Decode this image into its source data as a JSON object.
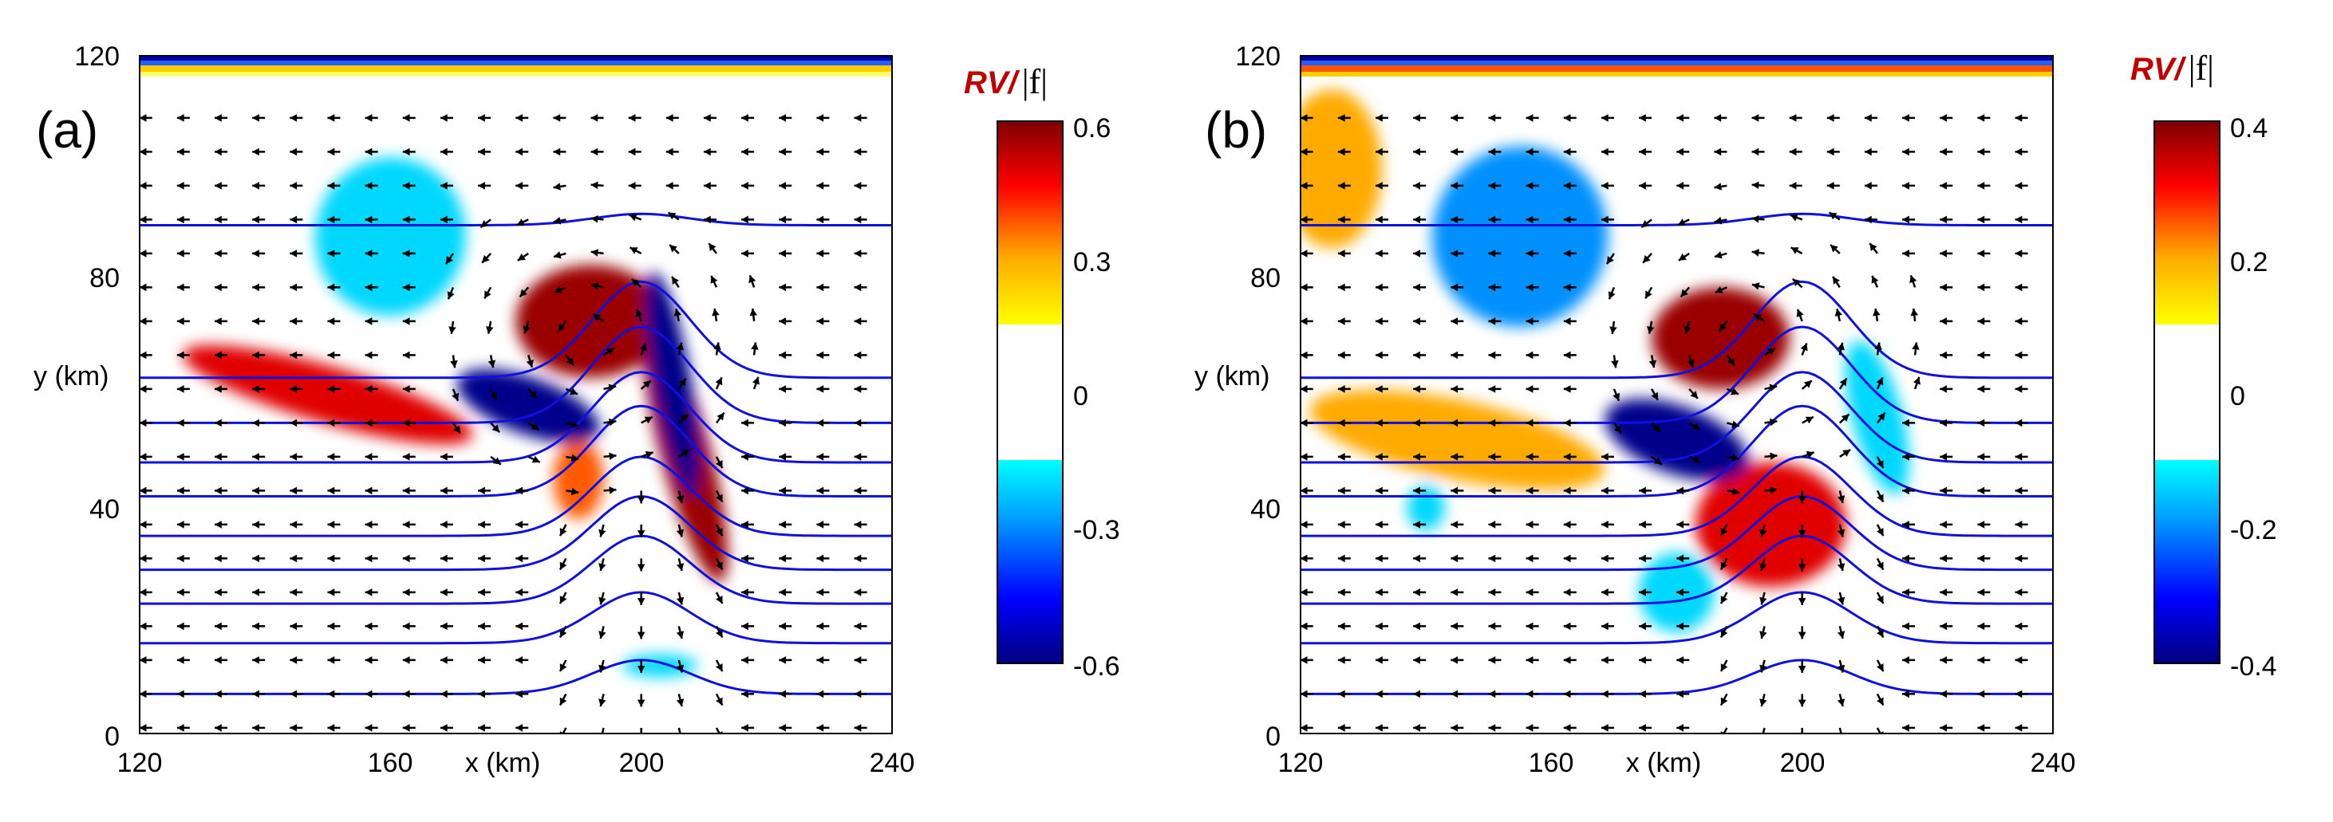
{
  "chart_data": [
    {
      "type": "contour",
      "panel_label": "(a)",
      "xlabel": "x (km)",
      "ylabel": "y (km)",
      "xlim": [
        120,
        240
      ],
      "ylim": [
        0,
        120
      ],
      "xticks": [
        "120",
        "160",
        "200",
        "240"
      ],
      "yticks": [
        "0",
        "40",
        "80",
        "120"
      ],
      "colorbar": {
        "title_rv": "RV/",
        "title_f": "|f|",
        "ticks": [
          "0.6",
          "0.3",
          "0",
          "-0.3",
          "-0.6"
        ],
        "range": [
          -0.6,
          0.6
        ]
      },
      "streamlines": [
        {
          "y": 7,
          "bump": 6
        },
        {
          "y": 16,
          "bump": 9
        },
        {
          "y": 23,
          "bump": 12
        },
        {
          "y": 29,
          "bump": 13
        },
        {
          "y": 35,
          "bump": 14
        },
        {
          "y": 42,
          "bump": 16
        },
        {
          "y": 48,
          "bump": 16
        },
        {
          "y": 55,
          "bump": 17
        },
        {
          "y": 63,
          "bump": 17
        },
        {
          "y": 90,
          "bump": 2
        }
      ],
      "features": [
        {
          "cx": 192,
          "cy": 73,
          "rx": 12,
          "ry": 10,
          "rot": 0,
          "value": 0.55
        },
        {
          "cx": 207,
          "cy": 50,
          "rx": 4,
          "ry": 24,
          "rot": -15,
          "value": 0.5
        },
        {
          "cx": 150,
          "cy": 60,
          "rx": 24,
          "ry": 5,
          "rot": 16,
          "value": 0.4
        },
        {
          "cx": 190,
          "cy": 45,
          "rx": 4,
          "ry": 7,
          "rot": 0,
          "value": 0.3
        },
        {
          "cx": 182,
          "cy": 58,
          "rx": 12,
          "ry": 5,
          "rot": 20,
          "value": -0.55
        },
        {
          "cx": 205,
          "cy": 62,
          "rx": 3,
          "ry": 20,
          "rot": -10,
          "value": -0.5
        },
        {
          "cx": 160,
          "cy": 88,
          "rx": 12,
          "ry": 14,
          "rot": 10,
          "value": -0.2
        },
        {
          "cx": 203,
          "cy": 12,
          "rx": 6,
          "ry": 2,
          "rot": 0,
          "value": -0.15
        }
      ]
    },
    {
      "type": "contour",
      "panel_label": "(b)",
      "xlabel": "x (km)",
      "ylabel": "y (km)",
      "xlim": [
        120,
        240
      ],
      "ylim": [
        0,
        120
      ],
      "xticks": [
        "120",
        "160",
        "200",
        "240"
      ],
      "yticks": [
        "0",
        "40",
        "80",
        "120"
      ],
      "colorbar": {
        "title_rv": "RV/",
        "title_f": "|f|",
        "ticks": [
          "0.4",
          "0.2",
          "0",
          "-0.2",
          "-0.4"
        ],
        "range": [
          -0.4,
          0.4
        ]
      },
      "streamlines": [
        {
          "y": 7,
          "bump": 6
        },
        {
          "y": 16,
          "bump": 9
        },
        {
          "y": 23,
          "bump": 12
        },
        {
          "y": 29,
          "bump": 13
        },
        {
          "y": 35,
          "bump": 14
        },
        {
          "y": 42,
          "bump": 16
        },
        {
          "y": 48,
          "bump": 16
        },
        {
          "y": 55,
          "bump": 17
        },
        {
          "y": 63,
          "bump": 17
        },
        {
          "y": 90,
          "bump": 2
        }
      ],
      "features": [
        {
          "cx": 187,
          "cy": 70,
          "rx": 11,
          "ry": 9,
          "rot": 0,
          "value": 0.35
        },
        {
          "cx": 195,
          "cy": 37,
          "rx": 12,
          "ry": 11,
          "rot": 0,
          "value": 0.25
        },
        {
          "cx": 145,
          "cy": 52,
          "rx": 24,
          "ry": 7,
          "rot": 12,
          "value": 0.12
        },
        {
          "cx": 125,
          "cy": 100,
          "rx": 8,
          "ry": 14,
          "rot": 0,
          "value": 0.12
        },
        {
          "cx": 180,
          "cy": 52,
          "rx": 12,
          "ry": 6,
          "rot": 20,
          "value": -0.35
        },
        {
          "cx": 155,
          "cy": 88,
          "rx": 14,
          "ry": 16,
          "rot": 10,
          "value": -0.18
        },
        {
          "cx": 180,
          "cy": 25,
          "rx": 6,
          "ry": 7,
          "rot": 0,
          "value": -0.15
        },
        {
          "cx": 212,
          "cy": 56,
          "rx": 4,
          "ry": 14,
          "rot": -15,
          "value": -0.15
        },
        {
          "cx": 140,
          "cy": 40,
          "rx": 3,
          "ry": 4,
          "rot": 0,
          "value": -0.1
        }
      ]
    }
  ]
}
